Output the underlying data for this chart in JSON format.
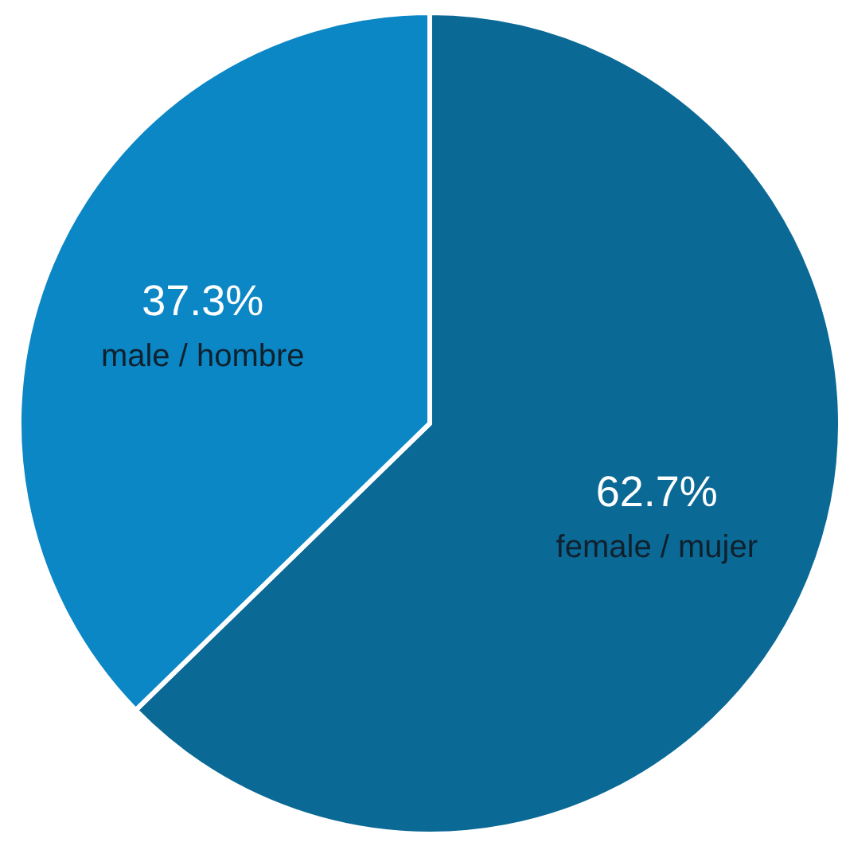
{
  "chart_data": {
    "type": "pie",
    "categories": [
      "female / mujer",
      "male / hombre"
    ],
    "values": [
      62.7,
      37.3
    ],
    "colors": [
      "#0b6996",
      "#0b87c5"
    ],
    "value_labels": [
      "62.7%",
      "37.3%"
    ],
    "legend": false
  }
}
